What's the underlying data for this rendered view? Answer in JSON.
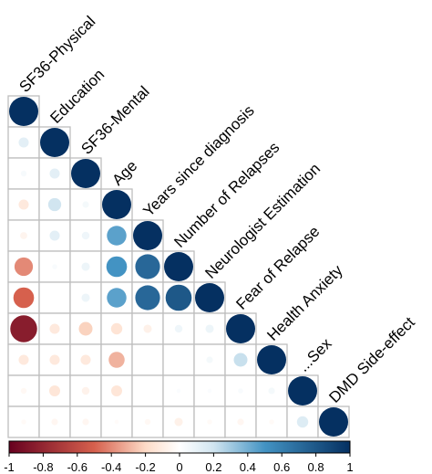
{
  "chart_data": {
    "type": "heatmap",
    "style": "lower-triangular correlation matrix, circles sized and colored by correlation",
    "variables": [
      "SF36-Physical",
      "Education",
      "SF36-Mental",
      "Age",
      "Years since diagnosis",
      "Number of Relapses",
      "Neurologist Estimation",
      "Fear of Relapse",
      "Health Anxiety",
      "...Sex",
      "DMD Side-effect"
    ],
    "matrix": [
      [
        1.0
      ],
      [
        0.12,
        1.0
      ],
      [
        0.04,
        0.12,
        1.0
      ],
      [
        -0.12,
        0.2,
        0.05,
        1.0
      ],
      [
        -0.06,
        0.12,
        0.07,
        0.45,
        1.0
      ],
      [
        -0.4,
        0.03,
        0.08,
        0.5,
        0.72,
        1.0
      ],
      [
        -0.5,
        0.0,
        0.08,
        0.45,
        0.72,
        0.8,
        1.0
      ],
      [
        -0.85,
        -0.12,
        -0.22,
        -0.15,
        -0.08,
        0.07,
        0.08,
        1.0
      ],
      [
        -0.12,
        -0.12,
        -0.12,
        -0.3,
        0.0,
        0.0,
        0.05,
        0.22,
        1.0
      ],
      [
        -0.04,
        -0.14,
        -0.07,
        -0.14,
        0.0,
        0.02,
        0.02,
        0.03,
        0.05,
        1.0
      ],
      [
        -0.03,
        -0.05,
        -0.05,
        -0.02,
        -0.04,
        -0.08,
        -0.03,
        -0.05,
        -0.03,
        0.15,
        1.0
      ]
    ],
    "diagonal_value": 1.0,
    "colorbar": {
      "ticks": [
        "-1",
        "-0.8",
        "-0.6",
        "-0.4",
        "-0.2",
        "0",
        "0.2",
        "0.4",
        "0.6",
        "0.8",
        "1"
      ],
      "range": [
        -1,
        1
      ],
      "orientation": "horizontal",
      "position": "bottom"
    },
    "colors": {
      "negative_strong": "#67001F",
      "negative_mid": "#D6604D",
      "negative_light": "#FDDBC7",
      "neutral": "#FFFFFF",
      "positive_light": "#D1E5F0",
      "positive_mid": "#4393C3",
      "positive_strong": "#053061",
      "grid": "#BEBEBE"
    },
    "title": "",
    "xlabel": "",
    "ylabel": ""
  }
}
